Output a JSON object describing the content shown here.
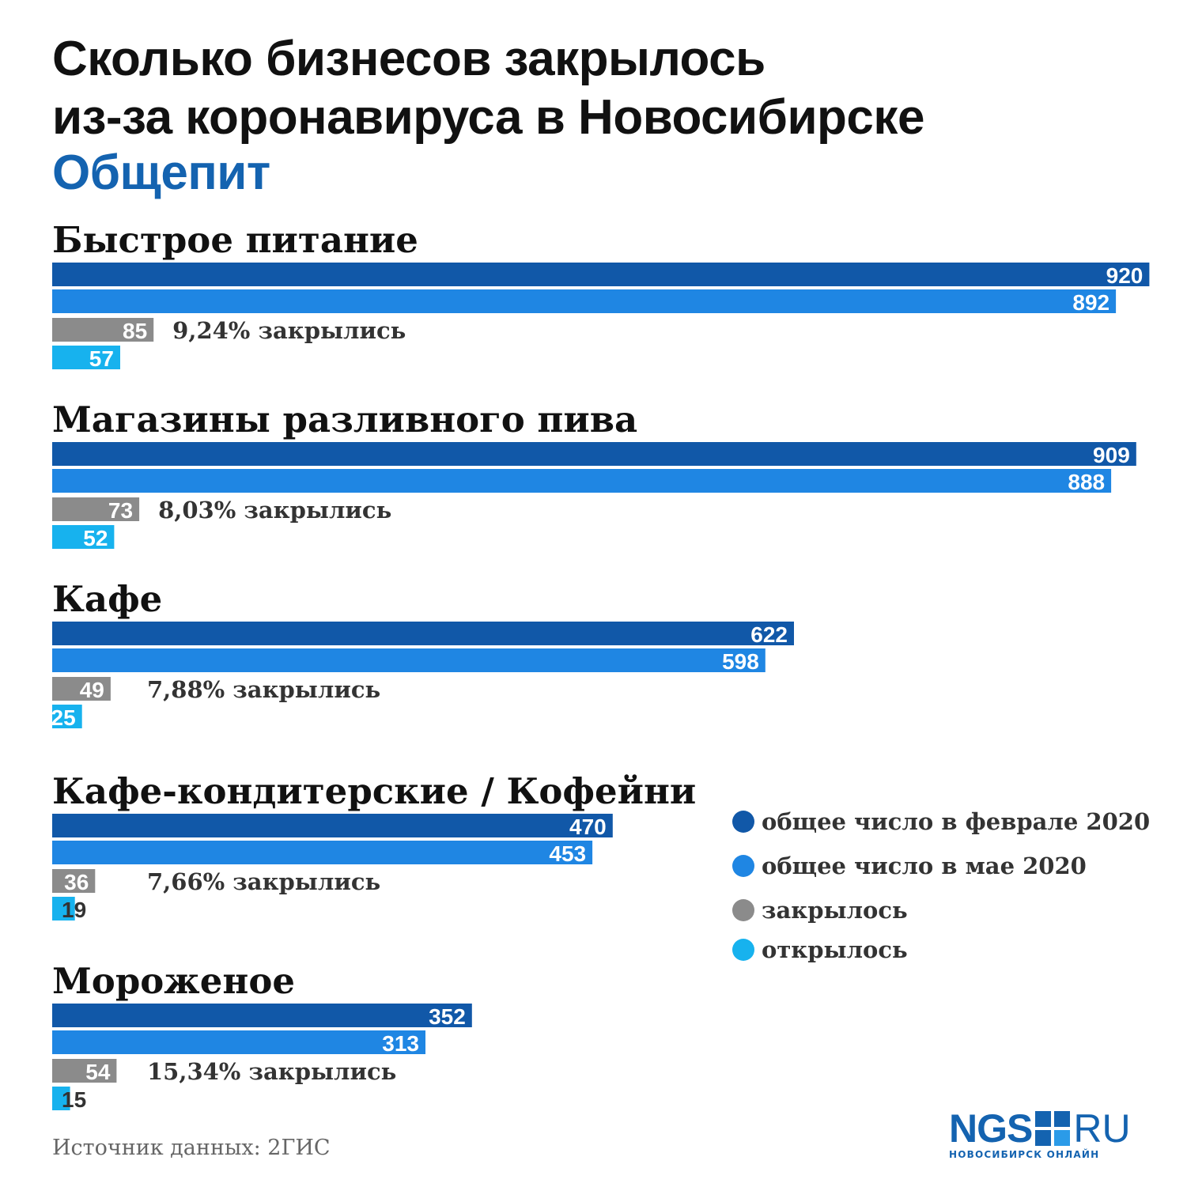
{
  "header": {
    "title_line1": "Сколько бизнесов закрылось",
    "title_line2": "из-за коронавируса в Новосибирске",
    "subtitle": "Общепит"
  },
  "colors": {
    "feb": "#1158a8",
    "may": "#1f86e3",
    "closed": "#8b8b8b",
    "opened": "#17b2ee",
    "brand": "#1463b0"
  },
  "chart_data": {
    "type": "bar",
    "orientation": "horizontal",
    "series_names": [
      "общее число в феврале 2020",
      "общее число в мае 2020",
      "закрылось",
      "открылось"
    ],
    "groups": [
      {
        "name": "Быстрое питание",
        "feb": 920,
        "may": 892,
        "closed": 85,
        "opened": 57,
        "closed_pct": "9,24% закрылись"
      },
      {
        "name": "Магазины разливного пива",
        "feb": 909,
        "may": 888,
        "closed": 73,
        "opened": 52,
        "closed_pct": "8,03% закрылись"
      },
      {
        "name": "Кафе",
        "feb": 622,
        "may": 598,
        "closed": 49,
        "opened": 25,
        "closed_pct": "7,88% закрылись"
      },
      {
        "name": "Кафе-кондитерские / Кофейни",
        "feb": 470,
        "may": 453,
        "closed": 36,
        "opened": 19,
        "closed_pct": "7,66% закрылись"
      },
      {
        "name": "Мороженое",
        "feb": 352,
        "may": 313,
        "closed": 54,
        "opened": 15,
        "closed_pct": "15,34% закрылись"
      }
    ],
    "legend_position": "right"
  },
  "legend": {
    "items": [
      {
        "label": "общее число в феврале 2020",
        "color": "#1158a8"
      },
      {
        "label": "общее число в мае 2020",
        "color": "#1f86e3"
      },
      {
        "label": "закрылось",
        "color": "#8b8b8b"
      },
      {
        "label": "открылось",
        "color": "#17b2ee"
      }
    ]
  },
  "footer": {
    "source": "Источник данных: 2ГИС",
    "logo_main": "NGS",
    "logo_ru": "RU",
    "logo_tagline": "НОВОСИБИРСК ОНЛАЙН"
  }
}
